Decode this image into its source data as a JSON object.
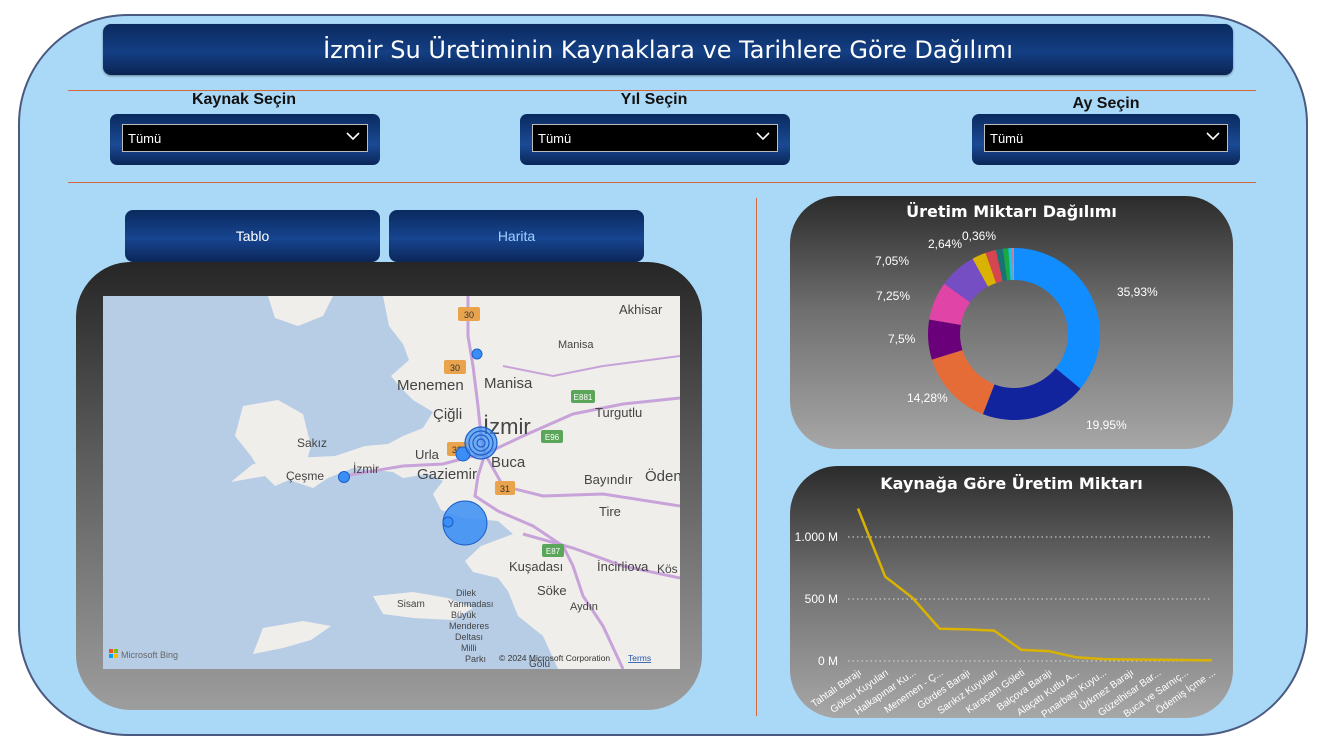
{
  "title": "İzmir Su Üretiminin Kaynaklara ve Tarihlere Göre Dağılımı",
  "slicers": [
    {
      "label": "Kaynak Seçin",
      "value": "Tümü"
    },
    {
      "label": "Yıl Seçin",
      "value": "Tümü"
    },
    {
      "label": "Ay Seçin",
      "value": "Tümü"
    }
  ],
  "nav": {
    "table_label": "Tablo",
    "map_label": "Harita",
    "active": "Harita"
  },
  "map": {
    "places": [
      "Akhisar",
      "Manisa",
      "Menemen",
      "Manisa",
      "Turgutlu",
      "Çiğli",
      "İzmir",
      "Sakız",
      "İzmir",
      "Urla",
      "Buca",
      "Çeşme",
      "Gaziemir",
      "Bayındır",
      "Öden",
      "Tire",
      "Kuşadası",
      "İncirliova",
      "Kös",
      "Söke",
      "Sisam",
      "Aydın",
      "Dilek Yarımadası Büyük Menderes Deltası Milli Parkı",
      "Gölü"
    ],
    "road_shields": [
      "30",
      "30",
      "E881",
      "E96",
      "32",
      "31",
      "E87"
    ],
    "attribution_logo": "Microsoft Bing",
    "copyright": "© 2024 Microsoft Corporation",
    "terms": "Terms"
  },
  "donut": {
    "title": "Üretim Miktarı Dağılımı",
    "chart_data": {
      "type": "pie",
      "slices": [
        {
          "value": 35.93,
          "label": "35,93%",
          "color": "#118dff"
        },
        {
          "value": 19.95,
          "label": "19,95%",
          "color": "#12239e"
        },
        {
          "value": 14.28,
          "label": "14,28%",
          "color": "#e66c37"
        },
        {
          "value": 7.5,
          "label": "7,5%",
          "color": "#6b007b"
        },
        {
          "value": 7.25,
          "label": "7,25%",
          "color": "#e044a7"
        },
        {
          "value": 7.05,
          "label": "7,05%",
          "color": "#744ec2"
        },
        {
          "value": 2.64,
          "label": "2,64%",
          "color": "#d9b300"
        },
        {
          "value": 2.0,
          "label": "",
          "color": "#d64550"
        },
        {
          "value": 1.3,
          "label": "",
          "color": "#197278"
        },
        {
          "value": 1.0,
          "label": "",
          "color": "#1aab40"
        },
        {
          "value": 0.7,
          "label": "",
          "color": "#15c6f4"
        },
        {
          "value": 0.36,
          "label": "0,36%",
          "color": "#e77c8e"
        }
      ]
    }
  },
  "line": {
    "title": "Kaynağa Göre Üretim Miktarı",
    "chart_data": {
      "type": "line",
      "categories": [
        "Tahtalı Barajı",
        "Göksu Kuyuları",
        "Halkapınar Ku...",
        "Menemen - Ç...",
        "Gördes Barajı",
        "Sarıkız Kuyuları",
        "Karaçam Göleti",
        "Balçova Barajı",
        "Alaçatı Kutlu A...",
        "Pınarbaşı Kuyu...",
        "Ürkmez Barajı",
        "Güzelhisar Bar...",
        "Buca ve Sarnıç...",
        "Ödemiş İçme ..."
      ],
      "values": [
        1230,
        680,
        510,
        260,
        255,
        245,
        90,
        80,
        30,
        15,
        12,
        10,
        8,
        5
      ],
      "ytick_labels": [
        "0 M",
        "500 M",
        "1.000 M"
      ],
      "yticks": [
        0,
        500,
        1000
      ],
      "ylim": [
        0,
        1250
      ],
      "color": "#d9b300",
      "grid": true
    }
  }
}
